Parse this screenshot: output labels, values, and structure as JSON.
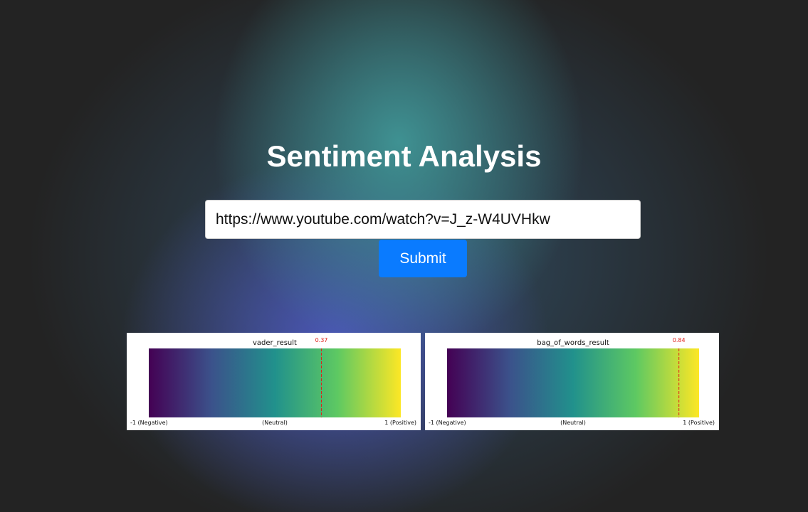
{
  "page": {
    "title": "Sentiment Analysis"
  },
  "form": {
    "url_value": "https://www.youtube.com/watch?v=J_z-W4UVHkw",
    "submit_label": "Submit"
  },
  "results": [
    {
      "title": "vader_result",
      "value_label": "0.37",
      "value": 0.37
    },
    {
      "title": "bag_of_words_result",
      "value_label": "0.84",
      "value": 0.84
    }
  ],
  "scale": {
    "left_label": "-1 (Negative)",
    "mid_label": "(Neutral)",
    "right_label": "1 (Positive)",
    "min": -1,
    "max": 1,
    "colormap": [
      "#440154",
      "#3b528b",
      "#21918c",
      "#5ec962",
      "#fde725"
    ],
    "marker_color": "#e0201a"
  }
}
